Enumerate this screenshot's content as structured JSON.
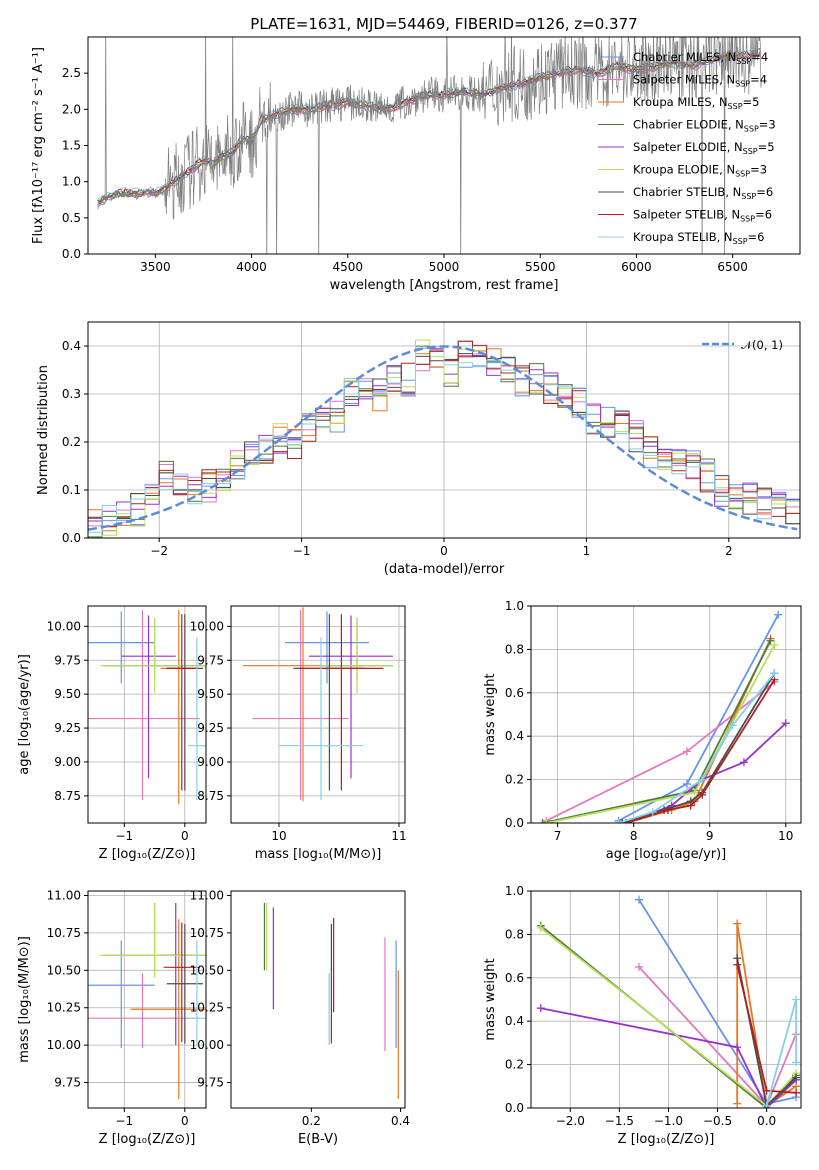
{
  "chart_data": [
    {
      "id": "spectrum",
      "type": "line",
      "title": "PLATE=1631, MJD=54469, FIBERID=0126, z=0.377",
      "xlabel": "wavelength [Angstrom, rest frame]",
      "ylabel": "Flux [fλ10⁻¹⁷ erg cm⁻² s⁻¹ A⁻¹]",
      "xlim": [
        3150,
        6850
      ],
      "ylim": [
        0,
        3.0
      ],
      "xticks": [
        3500,
        4000,
        4500,
        5000,
        5500,
        6000,
        6500
      ],
      "yticks": [
        0.0,
        0.5,
        1.0,
        1.5,
        2.0,
        2.5
      ],
      "grid": false,
      "legend_position": "top-right",
      "observed": {
        "color": "#808080",
        "x": [
          3200,
          3250,
          3300,
          3350,
          3400,
          3450,
          3500,
          3550,
          3600,
          3650,
          3700,
          3750,
          3800,
          3850,
          3900,
          3950,
          4000,
          4050,
          4100,
          4200,
          4300,
          4400,
          4500,
          4600,
          4700,
          4800,
          4900,
          5000,
          5100,
          5200,
          5300,
          5400,
          5500,
          5600,
          5700,
          5800,
          5900,
          6000,
          6100,
          6200,
          6300,
          6400,
          6500,
          6600,
          6650
        ],
        "y": [
          0.7,
          0.78,
          0.82,
          0.85,
          0.83,
          0.86,
          0.84,
          0.9,
          1.0,
          1.1,
          1.2,
          1.3,
          1.25,
          1.35,
          1.4,
          1.6,
          1.55,
          1.85,
          1.9,
          2.0,
          2.0,
          2.05,
          2.1,
          2.05,
          2.0,
          2.1,
          2.2,
          2.2,
          2.25,
          2.2,
          2.3,
          2.35,
          2.45,
          2.5,
          2.55,
          2.5,
          2.6,
          2.55,
          2.6,
          2.65,
          2.6,
          2.7,
          2.75,
          2.75,
          2.8
        ]
      },
      "series": [
        {
          "name": "Chabrier MILES, N_SSP=4",
          "color": "#6495ed"
        },
        {
          "name": "Salpeter MILES, N_SSP=4",
          "color": "#e377c2"
        },
        {
          "name": "Kroupa MILES, N_SSP=5",
          "color": "#e8771e"
        },
        {
          "name": "Chabrier ELODIE, N_SSP=3",
          "color": "#4f7942"
        },
        {
          "name": "Salpeter ELODIE, N_SSP=5",
          "color": "#9932cc"
        },
        {
          "name": "Kroupa ELODIE, N_SSP=3",
          "color": "#b5e05a"
        },
        {
          "name": "Chabrier STELIB, N_SSP=6",
          "color": "#4d4d4d"
        },
        {
          "name": "Salpeter STELIB, N_SSP=6",
          "color": "#b22222"
        },
        {
          "name": "Kroupa STELIB, N_SSP=6",
          "color": "#87ceeb"
        }
      ]
    },
    {
      "id": "residuals",
      "type": "line",
      "xlabel": "(data-model)/error",
      "ylabel": "Normed distribution",
      "xlim": [
        -2.5,
        2.5
      ],
      "ylim": [
        0,
        0.45
      ],
      "xticks": [
        -2,
        -1,
        0,
        1,
        2
      ],
      "yticks": [
        0.0,
        0.1,
        0.2,
        0.3,
        0.4
      ],
      "grid": true,
      "legend": "𝒩(0, 1)",
      "legend_position": "top-right",
      "gaussian": {
        "mean": 0,
        "sigma": 1,
        "color": "#5b8bd9"
      },
      "bin_edges": [
        -2.5,
        -2.4,
        -2.3,
        -2.2,
        -2.1,
        -2.0,
        -1.9,
        -1.8,
        -1.7,
        -1.6,
        -1.5,
        -1.4,
        -1.3,
        -1.2,
        -1.1,
        -1.0,
        -0.9,
        -0.8,
        -0.7,
        -0.6,
        -0.5,
        -0.4,
        -0.3,
        -0.2,
        -0.1,
        0.0,
        0.1,
        0.2,
        0.3,
        0.4,
        0.5,
        0.6,
        0.7,
        0.8,
        0.9,
        1.0,
        1.1,
        1.2,
        1.3,
        1.4,
        1.5,
        1.6,
        1.7,
        1.8,
        1.9,
        2.0,
        2.1,
        2.2,
        2.3,
        2.4,
        2.5
      ],
      "hist_mean": [
        0.03,
        0.04,
        0.05,
        0.06,
        0.08,
        0.13,
        0.1,
        0.1,
        0.11,
        0.12,
        0.15,
        0.18,
        0.19,
        0.21,
        0.2,
        0.23,
        0.24,
        0.25,
        0.3,
        0.31,
        0.3,
        0.34,
        0.33,
        0.38,
        0.37,
        0.35,
        0.39,
        0.38,
        0.36,
        0.36,
        0.33,
        0.33,
        0.31,
        0.29,
        0.28,
        0.25,
        0.24,
        0.23,
        0.21,
        0.18,
        0.17,
        0.16,
        0.15,
        0.13,
        0.1,
        0.09,
        0.08,
        0.07,
        0.06,
        0.06
      ]
    },
    {
      "id": "age-vs-Z",
      "type": "scatter",
      "xlabel": "Z [log₁₀(Z/Z⊙)]",
      "ylabel": "age  [log₁₀(age/yr)]",
      "xlim": [
        -1.6,
        0.35
      ],
      "ylim": [
        8.55,
        10.15
      ],
      "xticks": [
        -1,
        0
      ],
      "yticks": [
        8.75,
        9.0,
        9.25,
        9.5,
        9.75,
        10.0
      ],
      "grid": true,
      "points": [
        {
          "series": "Chabrier MILES",
          "x": -1.05,
          "y": 9.88,
          "xerr": 0.55,
          "yerr": [
            0.3,
            0.23
          ]
        },
        {
          "series": "Salpeter MILES",
          "x": -0.7,
          "y": 9.32,
          "xerr": 0.95,
          "yerr": [
            0.6,
            0.8
          ]
        },
        {
          "series": "Kroupa MILES",
          "x": -0.1,
          "y": 9.69,
          "xerr": 0.3,
          "yerr": [
            1.0,
            0.43
          ]
        },
        {
          "series": "Chabrier ELODIE",
          "x": -0.5,
          "y": 9.71,
          "xerr": 0.85,
          "yerr": [
            0.1,
            0.35
          ]
        },
        {
          "series": "Salpeter ELODIE",
          "x": -0.6,
          "y": 9.78,
          "xerr": 0.45,
          "yerr": [
            0.9,
            0.3
          ]
        },
        {
          "series": "Kroupa ELODIE",
          "x": -0.5,
          "y": 9.71,
          "xerr": 0.9,
          "yerr": [
            0.2,
            0.35
          ]
        },
        {
          "series": "Chabrier STELIB",
          "x": 0.0,
          "y": 9.69,
          "xerr": 0.3,
          "yerr": [
            0.9,
            0.4
          ]
        },
        {
          "series": "Salpeter STELIB",
          "x": -0.05,
          "y": 9.69,
          "xerr": 0.25,
          "yerr": [
            0.9,
            0.4
          ]
        },
        {
          "series": "Kroupa STELIB",
          "x": 0.2,
          "y": 9.12,
          "xerr": 0.15,
          "yerr": [
            0.4,
            0.8
          ]
        }
      ]
    },
    {
      "id": "age-vs-mass",
      "type": "scatter",
      "xlabel": "mass [log₁₀(M/M⊙)]",
      "xlim": [
        9.6,
        11.05
      ],
      "ylim": [
        8.55,
        10.15
      ],
      "xticks": [
        10,
        11
      ],
      "yticks": [
        8.75,
        9.0,
        9.25,
        9.5,
        9.75,
        10.0
      ],
      "grid": true,
      "points": [
        {
          "series": "Chabrier MILES",
          "x": 10.4,
          "y": 9.88,
          "xerr": 0.35,
          "yerr": [
            0.3,
            0.23
          ]
        },
        {
          "series": "Salpeter MILES",
          "x": 10.18,
          "y": 9.32,
          "xerr": 0.4,
          "yerr": [
            0.6,
            0.8
          ]
        },
        {
          "series": "Kroupa MILES",
          "x": 10.2,
          "y": 9.71,
          "xerr": 0.5,
          "yerr": [
            1.0,
            0.43
          ]
        },
        {
          "series": "Chabrier ELODIE",
          "x": 10.65,
          "y": 9.71,
          "xerr": 0.3,
          "yerr": [
            0.1,
            0.35
          ]
        },
        {
          "series": "Salpeter ELODIE",
          "x": 10.6,
          "y": 9.78,
          "xerr": 0.35,
          "yerr": [
            0.9,
            0.3
          ]
        },
        {
          "series": "Kroupa ELODIE",
          "x": 10.65,
          "y": 9.71,
          "xerr": 0.3,
          "yerr": [
            0.2,
            0.35
          ]
        },
        {
          "series": "Chabrier STELIB",
          "x": 10.42,
          "y": 9.69,
          "xerr": 0.3,
          "yerr": [
            0.9,
            0.4
          ]
        },
        {
          "series": "Salpeter STELIB",
          "x": 10.52,
          "y": 9.69,
          "xerr": 0.35,
          "yerr": [
            0.9,
            0.4
          ]
        },
        {
          "series": "Kroupa STELIB",
          "x": 10.35,
          "y": 9.12,
          "xerr": 0.35,
          "yerr": [
            0.4,
            0.8
          ]
        }
      ]
    },
    {
      "id": "weight-vs-age",
      "type": "line",
      "xlabel": "age  [log₁₀(age/yr)]",
      "ylabel": "mass weight",
      "xlim": [
        6.65,
        10.2
      ],
      "ylim": [
        0,
        1.0
      ],
      "xticks": [
        7,
        8,
        9,
        10
      ],
      "yticks": [
        0.0,
        0.2,
        0.4,
        0.6,
        0.8,
        1.0
      ],
      "grid": true,
      "lines": [
        {
          "series": "Chabrier MILES",
          "x": [
            7.8,
            8.7,
            9.9
          ],
          "y": [
            0.01,
            0.18,
            0.96
          ]
        },
        {
          "series": "Salpeter MILES",
          "x": [
            6.85,
            8.7,
            9.85
          ],
          "y": [
            0.01,
            0.33,
            0.65
          ]
        },
        {
          "series": "Kroupa MILES",
          "x": [
            7.9,
            8.5,
            8.8,
            9.8
          ],
          "y": [
            0.0,
            0.06,
            0.1,
            0.85
          ]
        },
        {
          "series": "Chabrier ELODIE",
          "x": [
            6.8,
            8.8,
            9.8
          ],
          "y": [
            0.0,
            0.15,
            0.84
          ]
        },
        {
          "series": "Salpeter ELODIE",
          "x": [
            7.9,
            8.5,
            8.9,
            9.45,
            10.0
          ],
          "y": [
            0.0,
            0.08,
            0.2,
            0.28,
            0.46
          ]
        },
        {
          "series": "Kroupa ELODIE",
          "x": [
            6.85,
            8.8,
            9.85
          ],
          "y": [
            0.0,
            0.14,
            0.82
          ]
        },
        {
          "series": "Chabrier STELIB",
          "x": [
            7.85,
            8.4,
            8.75,
            8.9,
            9.85
          ],
          "y": [
            0.0,
            0.06,
            0.1,
            0.14,
            0.69
          ]
        },
        {
          "series": "Salpeter STELIB",
          "x": [
            7.9,
            8.45,
            8.75,
            8.9,
            9.85
          ],
          "y": [
            0.0,
            0.06,
            0.08,
            0.13,
            0.66
          ]
        },
        {
          "series": "Kroupa STELIB",
          "x": [
            7.8,
            8.25,
            8.9,
            9.3,
            9.85
          ],
          "y": [
            0.0,
            0.05,
            0.2,
            0.45,
            0.69
          ]
        }
      ]
    },
    {
      "id": "mass-vs-Z",
      "type": "scatter",
      "xlabel": "Z [log₁₀(Z/Z⊙)]",
      "ylabel": "mass [log₁₀(M/M⊙)]",
      "xlim": [
        -1.6,
        0.35
      ],
      "ylim": [
        9.58,
        11.03
      ],
      "xticks": [
        -1,
        0
      ],
      "yticks": [
        9.75,
        10.0,
        10.25,
        10.5,
        10.75,
        11.0
      ],
      "grid": true,
      "points": [
        {
          "series": "Chabrier MILES",
          "x": -1.05,
          "y": 10.4,
          "xerr": 0.55,
          "yerr": [
            0.42,
            0.3
          ]
        },
        {
          "series": "Salpeter MILES",
          "x": -0.7,
          "y": 10.18,
          "xerr": 0.95,
          "yerr": [
            0.2,
            0.3
          ]
        },
        {
          "series": "Kroupa MILES",
          "x": -0.1,
          "y": 10.24,
          "xerr": 0.8,
          "yerr": [
            0.6,
            0.6
          ]
        },
        {
          "series": "Chabrier ELODIE",
          "x": -0.5,
          "y": 10.6,
          "xerr": 0.85,
          "yerr": [
            0.1,
            0.35
          ]
        },
        {
          "series": "Salpeter ELODIE",
          "x": -0.15,
          "y": 10.6,
          "xerr": 0.25,
          "yerr": [
            0.6,
            0.35
          ]
        },
        {
          "series": "Kroupa ELODIE",
          "x": -0.5,
          "y": 10.6,
          "xerr": 0.9,
          "yerr": [
            0.15,
            0.35
          ]
        },
        {
          "series": "Chabrier STELIB",
          "x": 0.0,
          "y": 10.41,
          "xerr": 0.3,
          "yerr": [
            0.4,
            0.4
          ]
        },
        {
          "series": "Salpeter STELIB",
          "x": -0.05,
          "y": 10.52,
          "xerr": 0.3,
          "yerr": [
            0.5,
            0.3
          ]
        },
        {
          "series": "Kroupa STELIB",
          "x": 0.2,
          "y": 10.18,
          "xerr": 0.15,
          "yerr": [
            0.18,
            0.52
          ]
        }
      ]
    },
    {
      "id": "mass-vs-ebv",
      "type": "scatter",
      "xlabel": "E(B-V)",
      "xlim": [
        0.02,
        0.41
      ],
      "ylim": [
        9.58,
        11.03
      ],
      "xticks": [
        0.2,
        0.4
      ],
      "yticks": [
        9.75,
        10.0,
        10.25,
        10.5,
        10.75,
        11.0
      ],
      "grid": false,
      "points": [
        {
          "series": "Chabrier MILES",
          "x": 0.39,
          "y": 10.4,
          "yerr": [
            0.42,
            0.3
          ]
        },
        {
          "series": "Salpeter MILES",
          "x": 0.365,
          "y": 10.18,
          "yerr": [
            0.22,
            0.54
          ]
        },
        {
          "series": "Kroupa MILES",
          "x": 0.395,
          "y": 10.24,
          "yerr": [
            0.6,
            0.26
          ]
        },
        {
          "series": "Chabrier ELODIE",
          "x": 0.095,
          "y": 10.6,
          "yerr": [
            0.1,
            0.35
          ]
        },
        {
          "series": "Salpeter ELODIE",
          "x": 0.115,
          "y": 10.6,
          "yerr": [
            0.36,
            0.32
          ]
        },
        {
          "series": "Kroupa ELODIE",
          "x": 0.1,
          "y": 10.6,
          "yerr": [
            0.1,
            0.35
          ]
        },
        {
          "series": "Chabrier STELIB",
          "x": 0.245,
          "y": 10.41,
          "yerr": [
            0.4,
            0.4
          ]
        },
        {
          "series": "Salpeter STELIB",
          "x": 0.25,
          "y": 10.52,
          "yerr": [
            0.3,
            0.33
          ]
        },
        {
          "series": "Kroupa STELIB",
          "x": 0.24,
          "y": 10.18,
          "yerr": [
            0.18,
            0.3
          ]
        }
      ]
    },
    {
      "id": "weight-vs-Z",
      "type": "line",
      "xlabel": "Z [log₁₀(Z/Z⊙)]",
      "ylabel": "mass weight",
      "xlim": [
        -2.4,
        0.35
      ],
      "ylim": [
        0,
        1.0
      ],
      "xticks": [
        -2.0,
        -1.5,
        -1.0,
        -0.5,
        0.0
      ],
      "yticks": [
        0.0,
        0.2,
        0.4,
        0.6,
        0.8,
        1.0
      ],
      "grid": true,
      "lines": [
        {
          "series": "Chabrier MILES",
          "x": [
            -1.3,
            0.0,
            0.3
          ],
          "y": [
            0.96,
            0.02,
            0.05
          ]
        },
        {
          "series": "Salpeter MILES",
          "x": [
            -1.3,
            0.0,
            0.3
          ],
          "y": [
            0.65,
            0.01,
            0.34
          ]
        },
        {
          "series": "Kroupa MILES",
          "x": [
            -0.3,
            -0.3,
            0.0,
            0.3
          ],
          "y": [
            0.02,
            0.85,
            0.01,
            0.1
          ]
        },
        {
          "series": "Chabrier ELODIE",
          "x": [
            -2.3,
            0.0,
            0.3
          ],
          "y": [
            0.84,
            0.0,
            0.15
          ]
        },
        {
          "series": "Salpeter ELODIE",
          "x": [
            -2.3,
            -0.3,
            0.0,
            0.3
          ],
          "y": [
            0.46,
            0.28,
            0.0,
            0.13
          ]
        },
        {
          "series": "Kroupa ELODIE",
          "x": [
            -2.3,
            0.0,
            0.3
          ],
          "y": [
            0.83,
            0.01,
            0.16
          ]
        },
        {
          "series": "Chabrier STELIB",
          "x": [
            -0.3,
            0.0,
            0.3
          ],
          "y": [
            0.69,
            0.01,
            0.14
          ]
        },
        {
          "series": "Salpeter STELIB",
          "x": [
            -0.3,
            0.0,
            0.3
          ],
          "y": [
            0.66,
            0.08,
            0.07
          ]
        },
        {
          "series": "Kroupa STELIB",
          "x": [
            0.0,
            0.3,
            0.3
          ],
          "y": [
            0.01,
            0.5,
            0.21
          ]
        }
      ]
    }
  ]
}
